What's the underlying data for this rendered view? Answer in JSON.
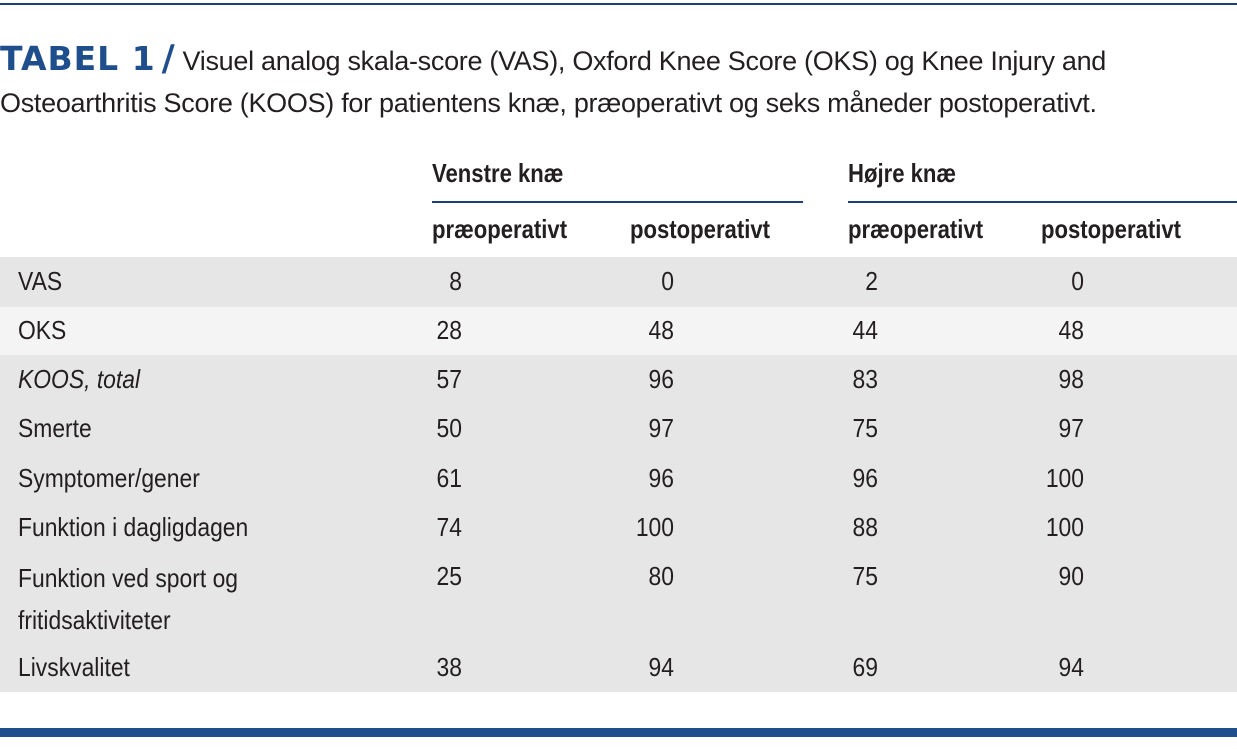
{
  "caption": {
    "label": "TABEL 1",
    "slash": "/",
    "text": "Visuel analog skala-score (VAS), Oxford Knee Score (OKS) og Knee Injury and Osteoarthritis Score (KOOS) for patientens knæ, præoperativt og seks måneder postoperativt."
  },
  "table": {
    "group_headers": [
      "Venstre knæ",
      "Højre knæ"
    ],
    "sub_headers": [
      "præoperativt",
      "postoperativt",
      "præoperativt",
      "postoperativt"
    ],
    "rows": [
      {
        "label": "VAS",
        "values": [
          "8",
          "0",
          "2",
          "0"
        ]
      },
      {
        "label": "OKS",
        "values": [
          "28",
          "48",
          "44",
          "48"
        ]
      },
      {
        "label": "KOOS, total",
        "values": [
          "57",
          "96",
          "83",
          "98"
        ]
      },
      {
        "label": "Smerte",
        "values": [
          "50",
          "97",
          "75",
          "97"
        ]
      },
      {
        "label": "Symptomer/gener",
        "values": [
          "61",
          "96",
          "96",
          "100"
        ]
      },
      {
        "label": "Funktion i dagligdagen",
        "values": [
          "74",
          "100",
          "88",
          "100"
        ]
      },
      {
        "label": "Funktion ved sport og fritidsaktiviteter",
        "values": [
          "25",
          "80",
          "75",
          "90"
        ]
      },
      {
        "label": "Livskvalitet",
        "values": [
          "38",
          "94",
          "69",
          "94"
        ]
      }
    ]
  }
}
